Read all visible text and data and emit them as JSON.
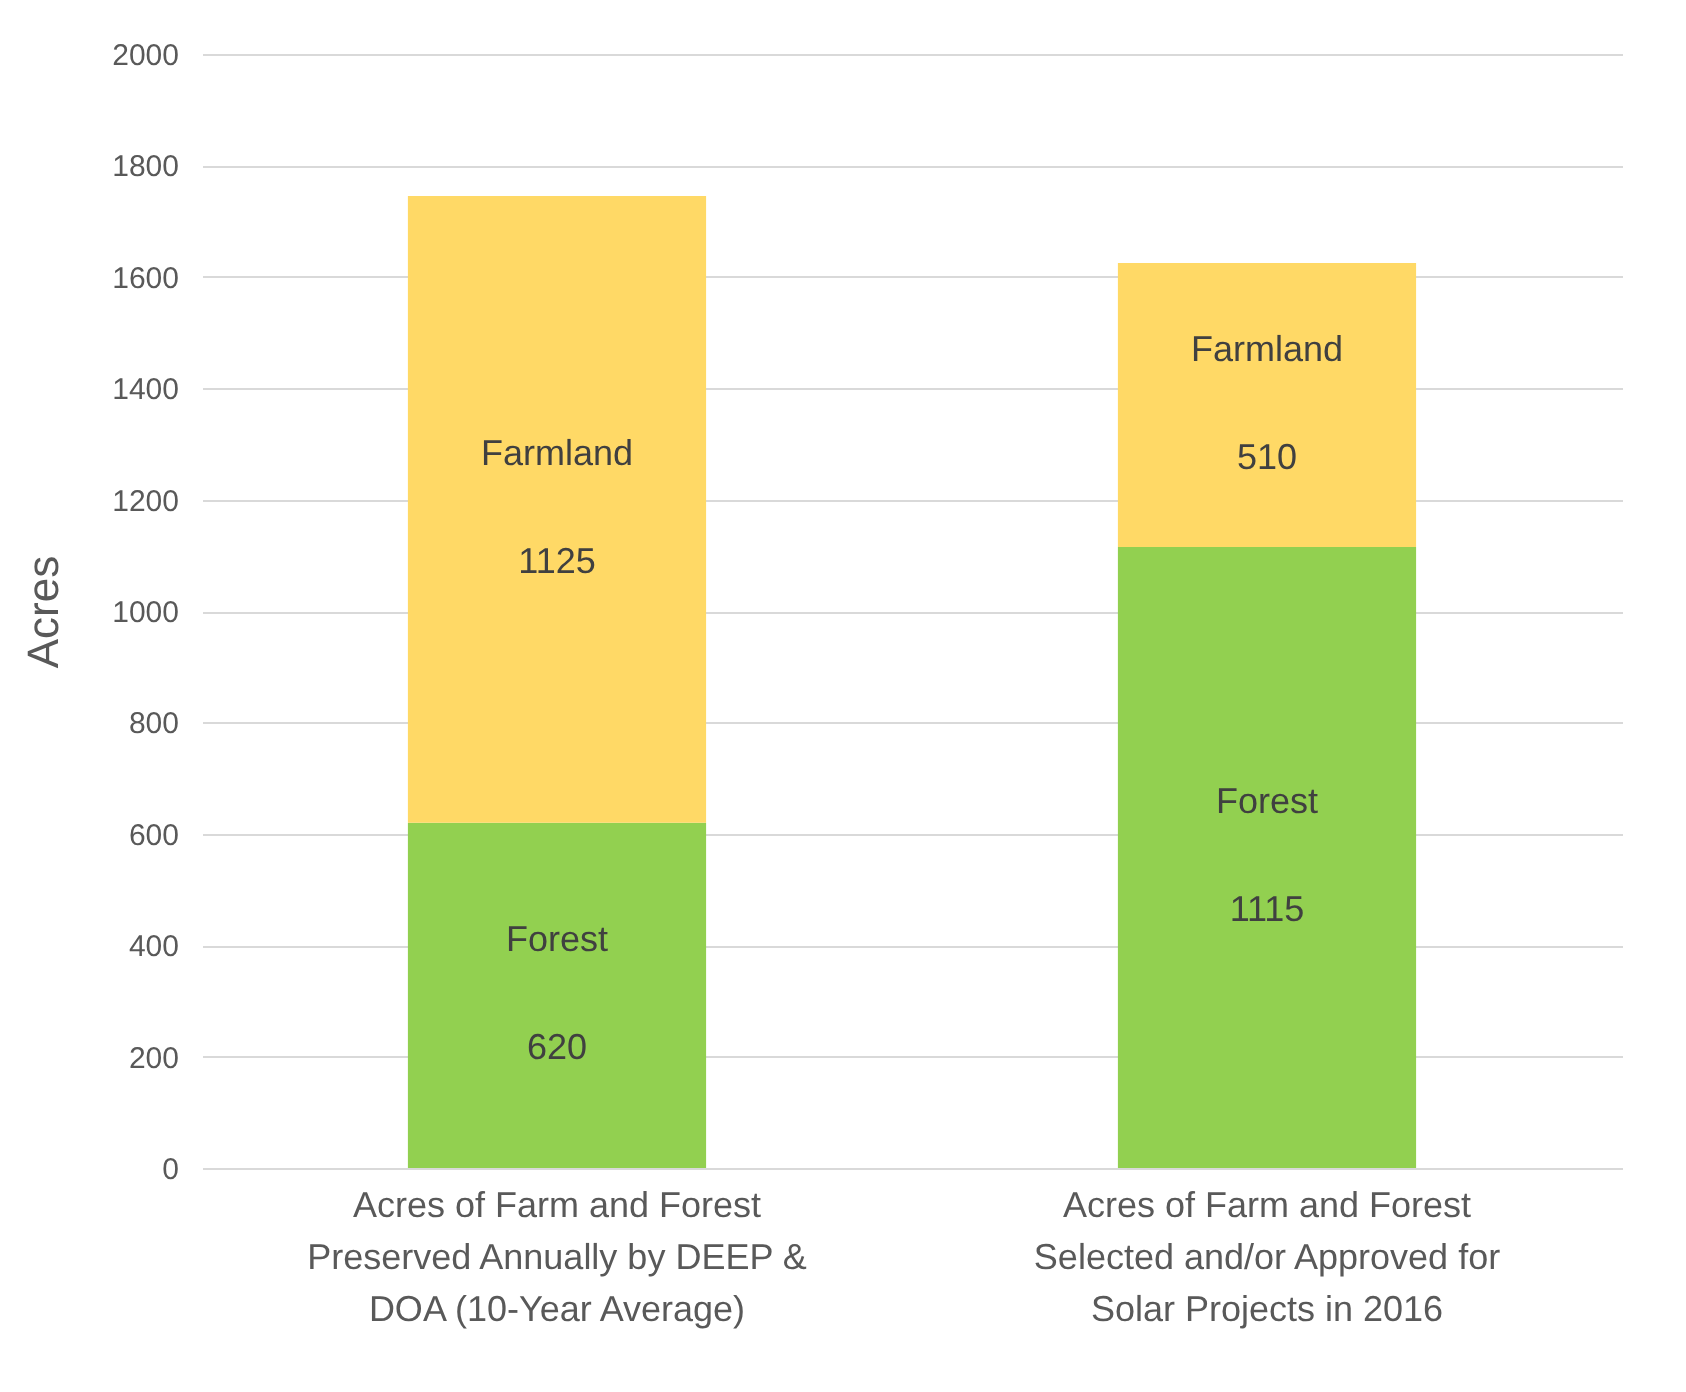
{
  "chart_data": {
    "type": "bar",
    "stacked": true,
    "ylabel": "Acres",
    "categories": [
      "Acres of Farm and Forest Preserved Annually by DEEP & DOA (10-Year Average)",
      "Acres of Farm and Forest Selected and/or Approved for Solar Projects in 2016"
    ],
    "series": [
      {
        "name": "Forest",
        "color": "#92d050",
        "values": [
          620,
          1115
        ]
      },
      {
        "name": "Farmland",
        "color": "#ffd966",
        "values": [
          1125,
          510
        ]
      }
    ],
    "ylim": [
      0,
      2000
    ],
    "yticks": [
      0,
      200,
      400,
      600,
      800,
      1000,
      1200,
      1400,
      1600,
      1800,
      2000
    ],
    "grid": "y",
    "legend": false,
    "data_labels": true
  }
}
